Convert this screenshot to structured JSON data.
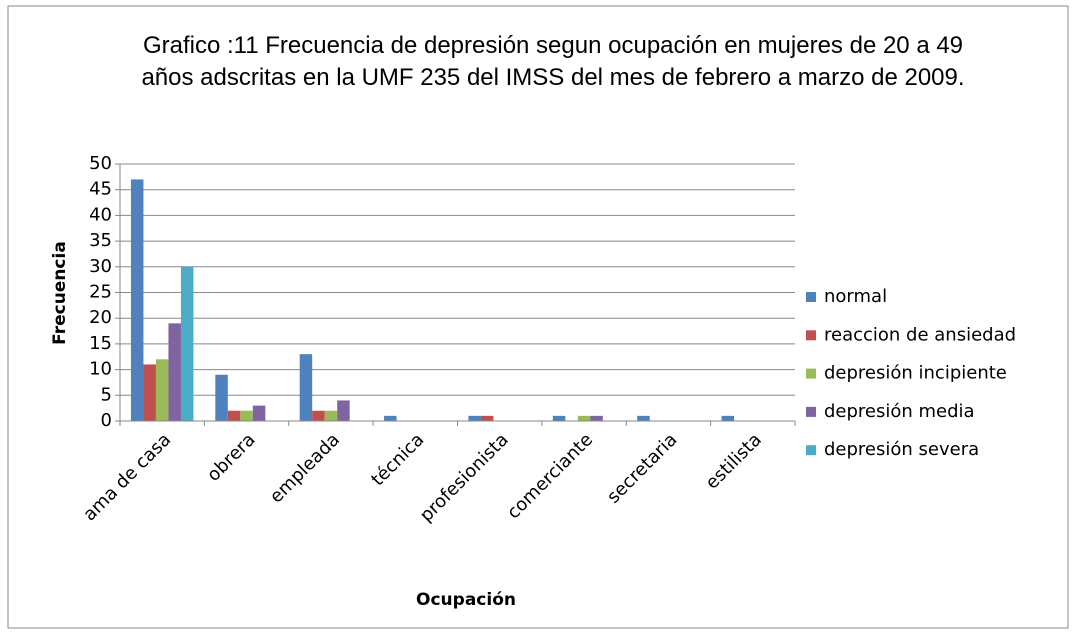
{
  "chart_data": {
    "type": "bar",
    "title": "Grafico :11 Frecuencia de depresión segun ocupación en mujeres de 20 a 49 años adscritas en la UMF 235 del IMSS del mes de febrero a marzo de 2009.",
    "xlabel": "Ocupación",
    "ylabel": "Frecuencia",
    "categories": [
      "ama de casa",
      "obrera",
      "empleada",
      "técnica",
      "profesionista",
      "comerciante",
      "secretaria",
      "estilista"
    ],
    "series": [
      {
        "name": "normal",
        "color": "#4f81bd",
        "values": [
          47,
          9,
          13,
          1,
          1,
          1,
          1,
          1
        ]
      },
      {
        "name": "reaccion de ansiedad",
        "color": "#c0504d",
        "values": [
          11,
          2,
          2,
          0,
          1,
          0,
          0,
          0
        ]
      },
      {
        "name": "depresión incipiente",
        "color": "#9bbb59",
        "values": [
          12,
          2,
          2,
          0,
          0,
          1,
          0,
          0
        ]
      },
      {
        "name": "depresión media",
        "color": "#8064a2",
        "values": [
          19,
          3,
          4,
          0,
          0,
          1,
          0,
          0
        ]
      },
      {
        "name": "depresión severa",
        "color": "#4bacc6",
        "values": [
          30,
          0,
          0,
          0,
          0,
          0,
          0,
          0
        ]
      }
    ],
    "ylim": [
      0,
      50
    ],
    "yticks": [
      0,
      5,
      10,
      15,
      20,
      25,
      30,
      35,
      40,
      45,
      50
    ],
    "grid": true,
    "legend": "right"
  }
}
